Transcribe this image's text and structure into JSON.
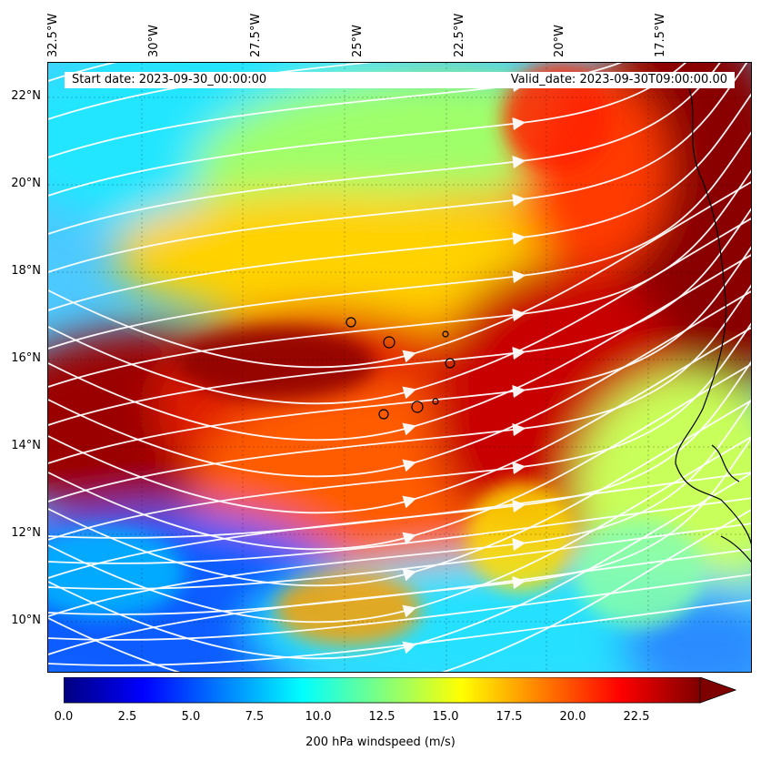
{
  "map": {
    "start_label": "Start date: 2023-09-30_00:00:00",
    "valid_label": "Valid_date: 2023-09-30T09:00:00.00",
    "lon_labels": [
      "32.5°W",
      "30°W",
      "27.5°W",
      "25°W",
      "22.5°W",
      "20°W",
      "17.5°W"
    ],
    "lat_labels": [
      "22°N",
      "20°N",
      "18°N",
      "16°N",
      "14°N",
      "12°N",
      "10°N"
    ],
    "lon_range": [
      -32.5,
      -15.0
    ],
    "lat_range": [
      8.9,
      22.8
    ],
    "streamline_color": "#ffffff",
    "coastline_color": "#000000"
  },
  "colorbar": {
    "title": "200 hPa windspeed (m/s)",
    "ticks": [
      "0.0",
      "2.5",
      "5.0",
      "7.5",
      "10.0",
      "12.5",
      "15.0",
      "17.5",
      "20.0",
      "22.5"
    ],
    "range": [
      0,
      25
    ],
    "extend": "max",
    "colormap": "jet",
    "colors": [
      "#00007f",
      "#0000ff",
      "#007fff",
      "#00ffff",
      "#7fff7f",
      "#ffff00",
      "#ff7f00",
      "#ff0000",
      "#7f0000"
    ]
  }
}
